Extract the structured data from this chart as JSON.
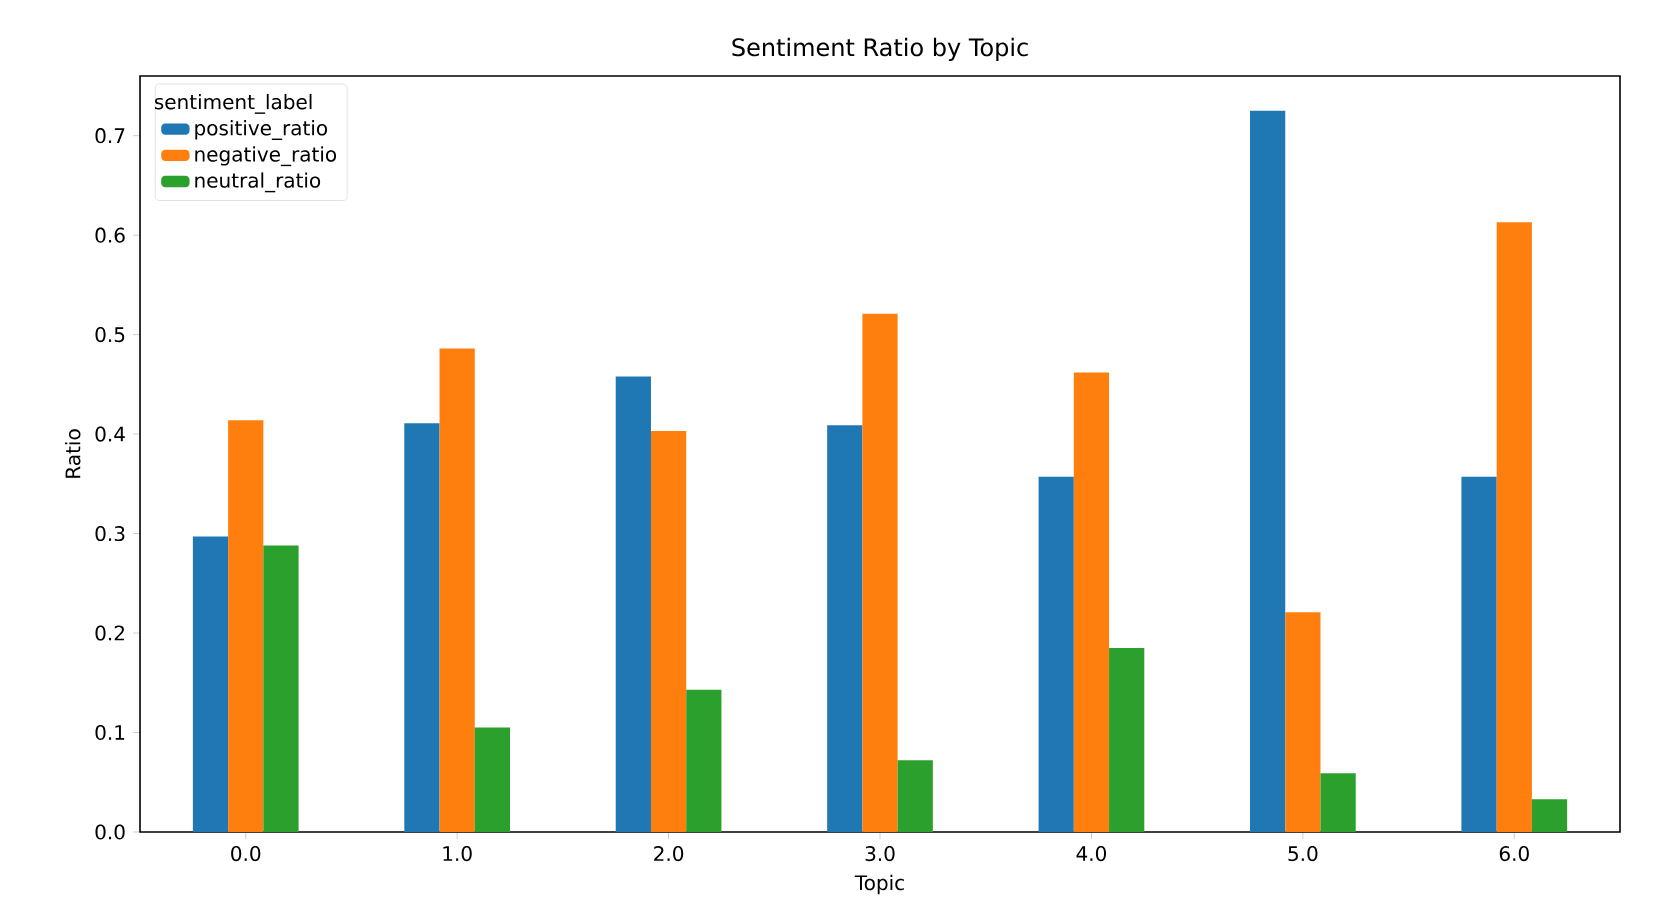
{
  "chart_data": {
    "type": "bar",
    "title": "Sentiment Ratio by Topic",
    "xlabel": "Topic",
    "ylabel": "Ratio",
    "legend_title": "sentiment_label",
    "categories": [
      "0.0",
      "1.0",
      "2.0",
      "3.0",
      "4.0",
      "5.0",
      "6.0"
    ],
    "series": [
      {
        "name": "positive_ratio",
        "color": "#1f77b4",
        "values": [
          0.297,
          0.411,
          0.458,
          0.409,
          0.357,
          0.725,
          0.357
        ]
      },
      {
        "name": "negative_ratio",
        "color": "#ff7f0e",
        "values": [
          0.414,
          0.486,
          0.403,
          0.521,
          0.462,
          0.221,
          0.613
        ]
      },
      {
        "name": "neutral_ratio",
        "color": "#2ca02c",
        "values": [
          0.288,
          0.105,
          0.143,
          0.072,
          0.185,
          0.059,
          0.033
        ]
      }
    ],
    "ylim": [
      0,
      0.76
    ],
    "yticks": [
      {
        "value": 0,
        "label": "0.0"
      },
      {
        "value": 0.1,
        "label": "0.1"
      },
      {
        "value": 0.2,
        "label": "0.2"
      },
      {
        "value": 0.3,
        "label": "0.3"
      },
      {
        "value": 0.4,
        "label": "0.4"
      },
      {
        "value": 0.5,
        "label": "0.5"
      },
      {
        "value": 0.6,
        "label": "0.6"
      },
      {
        "value": 0.7,
        "label": "0.7"
      }
    ],
    "legend": "top left"
  }
}
